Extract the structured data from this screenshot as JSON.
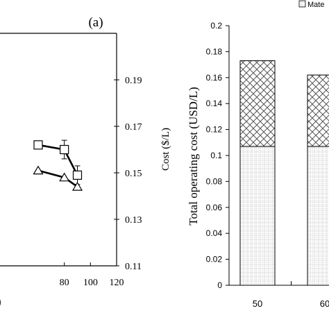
{
  "chart_data": [
    {
      "type": "line",
      "panel_label": "(a)",
      "partial_xlabel": ")",
      "ylabel_right": "Cost ($/L)",
      "xlim": [
        60,
        120
      ],
      "x_ticks": [
        "80",
        "100",
        "120"
      ],
      "y_right_lim": [
        0.11,
        0.21
      ],
      "y_right_ticks": [
        "0.19",
        "0.17",
        "0.15",
        "0.13",
        "0.11"
      ],
      "grid": false,
      "series": [
        {
          "marker": "square",
          "x": [
            60,
            80,
            90
          ],
          "y": [
            0.162,
            0.16,
            0.149
          ],
          "error": [
            null,
            0.004,
            0.004
          ]
        },
        {
          "marker": "triangle",
          "x": [
            60,
            80,
            90
          ],
          "y": [
            0.151,
            0.148,
            0.144
          ]
        }
      ]
    },
    {
      "type": "bar",
      "stacked": true,
      "ylabel": "Total operating cost (USD/L)",
      "ylim": [
        0,
        0.2
      ],
      "y_ticks": [
        "0",
        "0.02",
        "0.04",
        "0.06",
        "0.08",
        "0.1",
        "0.12",
        "0.14",
        "0.16",
        "0.18",
        "0.2"
      ],
      "categories": [
        "50",
        "60"
      ],
      "legend_position": "top-right",
      "legend": [
        "Mate"
      ],
      "grid": false,
      "series": [
        {
          "pattern": "dots",
          "values": [
            0.107,
            0.107
          ]
        },
        {
          "pattern": "crosshatch",
          "values": [
            0.066,
            0.055
          ]
        }
      ]
    }
  ]
}
